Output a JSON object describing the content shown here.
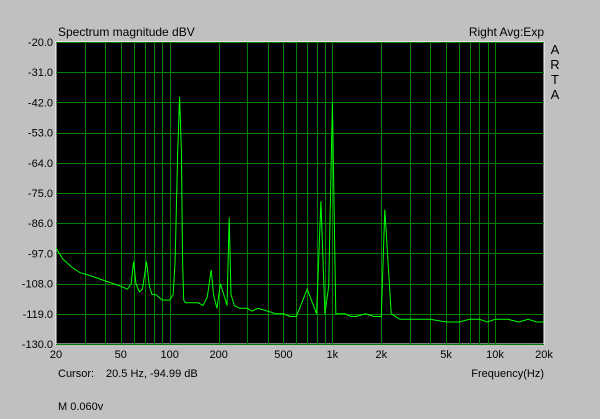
{
  "header": {
    "title": "Spectrum magnitude dBV",
    "right_label": "Right Avg:Exp"
  },
  "side_letters": [
    "A",
    "R",
    "T",
    "A"
  ],
  "footer": {
    "cursor_label": "Cursor:",
    "cursor_value": "20.5 Hz, -94.99 dB",
    "xlabel": "Frequency(Hz)",
    "status": "M 0.060v"
  },
  "colors": {
    "background": "#c0c0c0",
    "plot_bg": "#000000",
    "grid": "#008000",
    "trace": "#00ff00"
  },
  "chart_data": {
    "type": "line",
    "title": "Spectrum magnitude dBV",
    "xlabel": "Frequency(Hz)",
    "ylabel": "",
    "xscale": "log",
    "xlim": [
      20,
      20000
    ],
    "ylim": [
      -130,
      -20
    ],
    "grid": true,
    "y_ticks": [
      {
        "value": -20,
        "label": "-20.0"
      },
      {
        "value": -31,
        "label": "-31.0"
      },
      {
        "value": -42,
        "label": "-42.0"
      },
      {
        "value": -53,
        "label": "-53.0"
      },
      {
        "value": -64,
        "label": "-64.0"
      },
      {
        "value": -75,
        "label": "-75.0"
      },
      {
        "value": -86,
        "label": "-86.0"
      },
      {
        "value": -97,
        "label": "-97.0"
      },
      {
        "value": -108,
        "label": "-108.0"
      },
      {
        "value": -119,
        "label": "-119.0"
      },
      {
        "value": -130,
        "label": "-130.0"
      }
    ],
    "x_ticks": [
      {
        "value": 20,
        "label": "20"
      },
      {
        "value": 50,
        "label": "50"
      },
      {
        "value": 100,
        "label": "100"
      },
      {
        "value": 200,
        "label": "200"
      },
      {
        "value": 500,
        "label": "500"
      },
      {
        "value": 1000,
        "label": "1k"
      },
      {
        "value": 2000,
        "label": "2k"
      },
      {
        "value": 5000,
        "label": "5k"
      },
      {
        "value": 10000,
        "label": "10k"
      },
      {
        "value": 20000,
        "label": "20k"
      }
    ],
    "series": [
      {
        "x": [
          20,
          22,
          25,
          28,
          32,
          36,
          40,
          45,
          50,
          55,
          58,
          60,
          62,
          65,
          68,
          72,
          75,
          78,
          82,
          86,
          90,
          95,
          100,
          105,
          108,
          112,
          115,
          118,
          120,
          122,
          125,
          130,
          140,
          150,
          160,
          170,
          180,
          186,
          195,
          205,
          215,
          225,
          232,
          238,
          250,
          270,
          300,
          320,
          350,
          400,
          450,
          500,
          550,
          600,
          700,
          800,
          850,
          900,
          950,
          1000,
          1050,
          1100,
          1200,
          1300,
          1400,
          1600,
          1800,
          2000,
          2100,
          2300,
          2600,
          3000,
          3500,
          4000,
          5000,
          6000,
          7000,
          8000,
          9000,
          10000,
          12000,
          14000,
          16000,
          18000,
          20000
        ],
        "y": [
          -95,
          -99,
          -102,
          -104,
          -105,
          -106,
          -107,
          -108,
          -109,
          -110,
          -108,
          -100,
          -108,
          -111,
          -110,
          -100,
          -109,
          -112,
          -112,
          -113,
          -114,
          -114,
          -114,
          -112,
          -100,
          -60,
          -40,
          -60,
          -100,
          -114,
          -115,
          -115,
          -115,
          -115,
          -116,
          -113,
          -103,
          -112,
          -117,
          -108,
          -112,
          -116,
          -84,
          -112,
          -116,
          -117,
          -117,
          -118,
          -117,
          -118,
          -119,
          -119,
          -120,
          -120,
          -110,
          -119,
          -78,
          -119,
          -109,
          -42,
          -119,
          -119,
          -119,
          -120,
          -120,
          -119,
          -120,
          -120,
          -81,
          -119,
          -121,
          -121,
          -121,
          -121,
          -122,
          -122,
          -121,
          -121,
          -122,
          -121,
          -121,
          -122,
          -121,
          -122,
          -122
        ]
      }
    ]
  }
}
